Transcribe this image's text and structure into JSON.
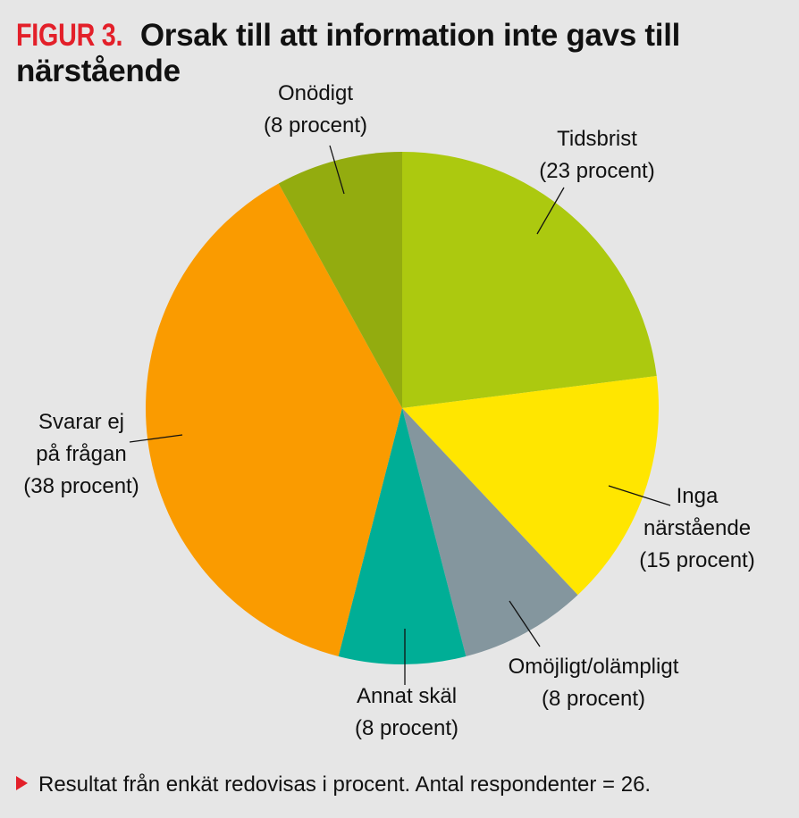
{
  "header": {
    "figure_label": "FIGUR 3.",
    "title": "Orsak till att information inte gavs till närstående"
  },
  "footnote": {
    "text": "Resultat från enkät redovisas i procent. Antal respondenter = 26."
  },
  "chart_data": {
    "type": "pie",
    "title": "Orsak till att information inte gavs till närstående",
    "start": "12 o'clock, clockwise",
    "slices": [
      {
        "category": "Tidsbrist",
        "value": 23,
        "label_lines": [
          "Tidsbrist",
          "(23 procent)"
        ],
        "color": "#acc90f"
      },
      {
        "category": "Inga närstående",
        "value": 15,
        "label_lines": [
          "Inga",
          "närstående",
          "(15 procent)"
        ],
        "color": "#ffe600"
      },
      {
        "category": "Omöjligt/olämpligt",
        "value": 8,
        "label_lines": [
          "Omöjligt/olämpligt",
          "(8 procent)"
        ],
        "color": "#84969e"
      },
      {
        "category": "Annat skäl",
        "value": 8,
        "label_lines": [
          "Annat skäl",
          "(8 procent)"
        ],
        "color": "#00ae96"
      },
      {
        "category": "Svarar ej på frågan",
        "value": 38,
        "label_lines": [
          "Svarar ej",
          "på frågan",
          "(38 procent)"
        ],
        "color": "#fa9b00"
      },
      {
        "category": "Onödigt",
        "value": 8,
        "label_lines": [
          "Onödigt",
          "(8 procent)"
        ],
        "color": "#93ac0f"
      }
    ]
  }
}
